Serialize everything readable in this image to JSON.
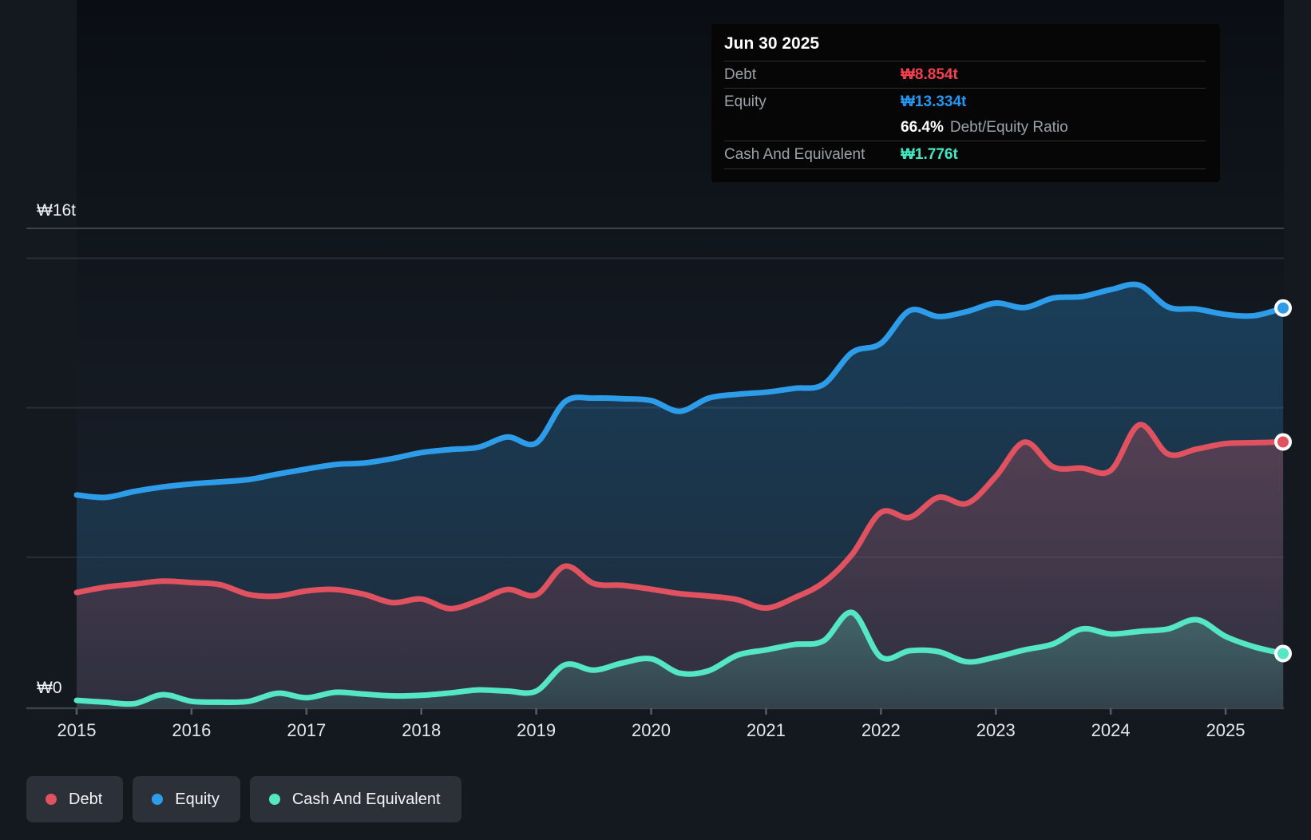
{
  "tooltip": {
    "date": "Jun 30 2025",
    "debt": {
      "label": "Debt",
      "value": "₩8.854t"
    },
    "equity": {
      "label": "Equity",
      "value": "₩13.334t"
    },
    "ratio": {
      "value": "66.4%",
      "label": "Debt/Equity Ratio"
    },
    "cash": {
      "label": "Cash And Equivalent",
      "value": "₩1.776t"
    }
  },
  "legend": {
    "items": [
      {
        "label": "Debt"
      },
      {
        "label": "Equity"
      },
      {
        "label": "Cash And Equivalent"
      }
    ]
  },
  "colors": {
    "debt": "#e0525f",
    "equity": "#2d9de9",
    "cash": "#55e6c4",
    "debt_value_text": "#f4414d",
    "equity_value_text": "#2196f3",
    "cash_value_text": "#3fe9c3",
    "grid_faint": "#272e37",
    "grid_strong": "#3b434d",
    "tick": "#545d67",
    "marker_ring": "#ffffff",
    "plot_bg_top": "#0a0e14",
    "plot_bg_bottom": "#1d242e",
    "page_bg": "#14181f"
  },
  "chart_data": {
    "type": "area",
    "title": "Debt to Equity history (KRW trillions)",
    "x_axis_years": [
      "2015",
      "2016",
      "2017",
      "2018",
      "2019",
      "2020",
      "2021",
      "2022",
      "2023",
      "2024",
      "2025"
    ],
    "y_axis": {
      "top_label": "₩16t",
      "bottom_label": "₩0",
      "max": 16,
      "min": 0
    },
    "y_gridline_values": [
      5,
      10,
      15
    ],
    "y_top_gridline_value": 16,
    "x_range": [
      2015.0,
      2025.5
    ],
    "legend_position": "bottom-left",
    "t": [
      2015.0,
      2015.25,
      2015.5,
      2015.75,
      2016.0,
      2016.25,
      2016.5,
      2016.75,
      2017.0,
      2017.25,
      2017.5,
      2017.75,
      2018.0,
      2018.25,
      2018.5,
      2018.75,
      2019.0,
      2019.25,
      2019.5,
      2019.75,
      2020.0,
      2020.25,
      2020.5,
      2020.75,
      2021.0,
      2021.25,
      2021.5,
      2021.75,
      2022.0,
      2022.25,
      2022.5,
      2022.75,
      2023.0,
      2023.25,
      2023.5,
      2023.75,
      2024.0,
      2024.25,
      2024.5,
      2024.75,
      2025.0,
      2025.25,
      2025.5
    ],
    "series": [
      {
        "name": "Equity",
        "color_key": "equity",
        "values": [
          7.08,
          7.0,
          7.2,
          7.35,
          7.45,
          7.52,
          7.6,
          7.78,
          7.95,
          8.1,
          8.15,
          8.3,
          8.5,
          8.6,
          8.68,
          9.02,
          8.82,
          10.2,
          10.32,
          10.3,
          10.24,
          9.88,
          10.32,
          10.45,
          10.52,
          10.65,
          10.78,
          11.85,
          12.15,
          13.25,
          13.05,
          13.22,
          13.5,
          13.35,
          13.67,
          13.72,
          13.95,
          14.1,
          13.37,
          13.3,
          13.12,
          13.08,
          13.334
        ]
      },
      {
        "name": "Debt",
        "color_key": "debt",
        "values": [
          3.82,
          4.0,
          4.1,
          4.2,
          4.15,
          4.08,
          3.75,
          3.7,
          3.87,
          3.92,
          3.76,
          3.48,
          3.6,
          3.28,
          3.55,
          3.92,
          3.74,
          4.7,
          4.12,
          4.06,
          3.93,
          3.78,
          3.7,
          3.58,
          3.3,
          3.65,
          4.15,
          5.1,
          6.5,
          6.33,
          7.0,
          6.8,
          7.7,
          8.85,
          8.02,
          7.98,
          7.9,
          9.43,
          8.45,
          8.62,
          8.8,
          8.83,
          8.854
        ]
      },
      {
        "name": "Cash And Equivalent",
        "color_key": "cash",
        "values": [
          0.21,
          0.15,
          0.1,
          0.4,
          0.18,
          0.15,
          0.18,
          0.45,
          0.3,
          0.48,
          0.42,
          0.36,
          0.38,
          0.46,
          0.56,
          0.52,
          0.52,
          1.4,
          1.22,
          1.46,
          1.6,
          1.12,
          1.2,
          1.72,
          1.9,
          2.08,
          2.2,
          3.15,
          1.66,
          1.87,
          1.84,
          1.5,
          1.66,
          1.9,
          2.1,
          2.6,
          2.43,
          2.52,
          2.6,
          2.91,
          2.35,
          2.0,
          1.776
        ]
      }
    ],
    "end_values": {
      "equity": 13.334,
      "debt": 8.854,
      "cash": 1.776
    }
  }
}
